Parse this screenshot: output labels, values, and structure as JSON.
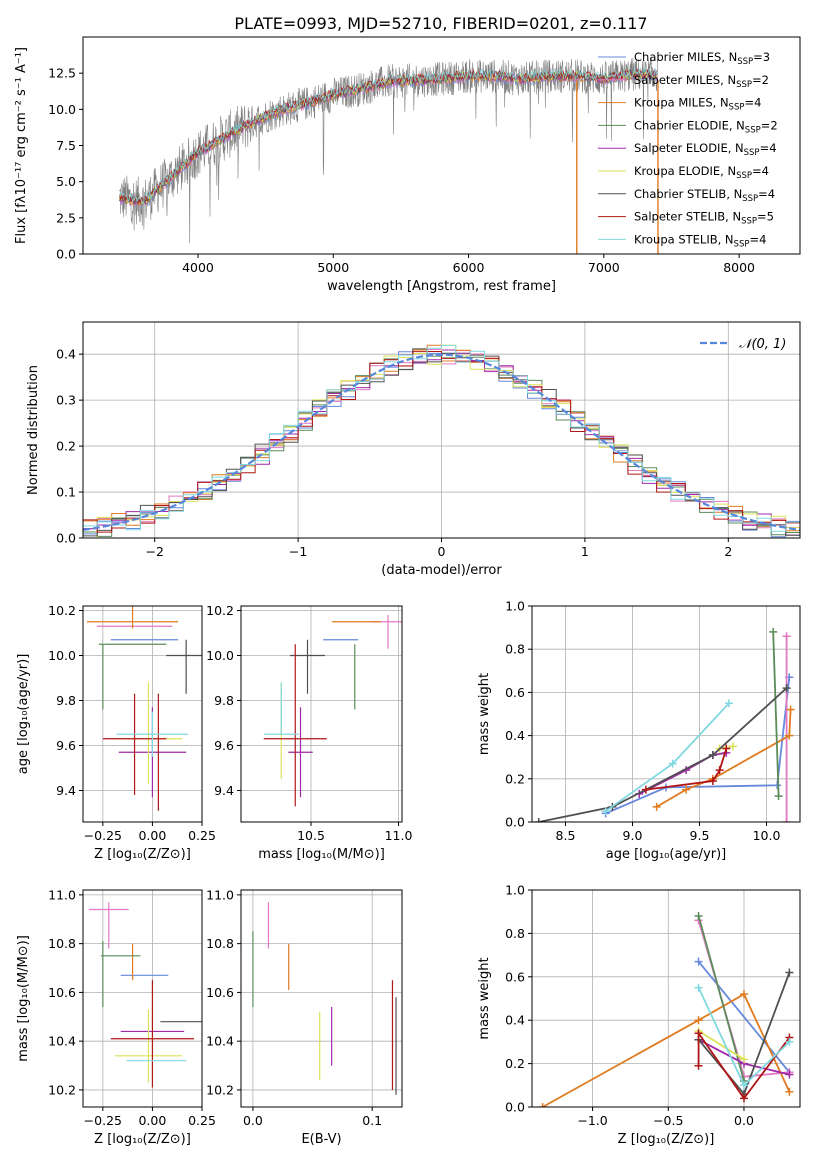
{
  "colors": {
    "Chabrier MILES": "#6688dd",
    "Salpeter MILES": "#e377c2",
    "Kroupa MILES": "#e07b1f",
    "Chabrier ELODIE": "#5b8c5a",
    "Salpeter ELODIE": "#a02aa8",
    "Kroupa ELODIE": "#dbe25a",
    "Chabrier STELIB": "#505050",
    "Salpeter STELIB": "#b01616",
    "Kroupa STELIB": "#80d8e0",
    "data": "#808080",
    "gaussian": "#5588dd",
    "grid": "#b0b0b0"
  },
  "legend": [
    {
      "model": "Chabrier MILES",
      "label": "Chabrier MILES, N",
      "sub": "SSP",
      "suffix": "=3"
    },
    {
      "model": "Salpeter MILES",
      "label": "Salpeter MILES, N",
      "sub": "SSP",
      "suffix": "=2"
    },
    {
      "model": "Kroupa MILES",
      "label": "Kroupa MILES, N",
      "sub": "SSP",
      "suffix": "=4"
    },
    {
      "model": "Chabrier ELODIE",
      "label": "Chabrier ELODIE, N",
      "sub": "SSP",
      "suffix": "=2"
    },
    {
      "model": "Salpeter ELODIE",
      "label": "Salpeter ELODIE, N",
      "sub": "SSP",
      "suffix": "=4"
    },
    {
      "model": "Kroupa ELODIE",
      "label": "Kroupa ELODIE, N",
      "sub": "SSP",
      "suffix": "=4"
    },
    {
      "model": "Chabrier STELIB",
      "label": "Chabrier STELIB, N",
      "sub": "SSP",
      "suffix": "=4"
    },
    {
      "model": "Salpeter STELIB",
      "label": "Salpeter STELIB, N",
      "sub": "SSP",
      "suffix": "=5"
    },
    {
      "model": "Kroupa STELIB",
      "label": "Kroupa STELIB, N",
      "sub": "SSP",
      "suffix": "=4"
    }
  ],
  "chart_data": [
    {
      "type": "line",
      "title": "PLATE=0993, MJD=52710, FIBERID=0201, z=0.117",
      "xlabel": "wavelength [Angstrom, rest frame]",
      "ylabel": "Flux [fλ10⁻¹⁷ erg cm⁻² s⁻¹ A⁻¹]",
      "xlim": [
        3150,
        8450
      ],
      "ylim": [
        0,
        15
      ],
      "xticks": [
        4000,
        5000,
        6000,
        7000,
        8000
      ],
      "yticks": [
        0.0,
        2.5,
        5.0,
        7.5,
        10.0,
        12.5
      ],
      "ytick_labels": [
        "0.0",
        "2.5",
        "5.0",
        "7.5",
        "10.0",
        "12.5"
      ],
      "grid": false,
      "legend_position": "upper right",
      "spectrum_shape": {
        "x": [
          3420,
          3600,
          3800,
          4000,
          4200,
          4400,
          4600,
          4800,
          5000,
          5200,
          5400,
          5600,
          5800,
          6000,
          6200,
          6400,
          6600,
          6800,
          7000,
          7200,
          7400
        ],
        "y": [
          3.9,
          3.6,
          5.3,
          7.0,
          8.1,
          9.1,
          9.9,
          10.4,
          11.0,
          11.4,
          11.9,
          12.0,
          12.1,
          12.3,
          12.3,
          12.1,
          12.3,
          12.3,
          12.1,
          12.4,
          12.4
        ]
      }
    },
    {
      "type": "histogram",
      "xlabel": "(data-model)/error",
      "ylabel": "Normed distribution",
      "xlim": [
        -2.5,
        2.5
      ],
      "ylim": [
        0,
        0.47
      ],
      "xticks": [
        -2,
        -1,
        0,
        1,
        2
      ],
      "xtick_labels": [
        "−2",
        "−1",
        "0",
        "1",
        "2"
      ],
      "yticks": [
        0.0,
        0.1,
        0.2,
        0.3,
        0.4
      ],
      "ytick_labels": [
        "0.0",
        "0.1",
        "0.2",
        "0.3",
        "0.4"
      ],
      "grid": true,
      "gaussian_label": "𝒩(0, 1)",
      "legend_position": "upper right",
      "bins": [
        -2.5,
        2.5,
        50
      ]
    },
    {
      "type": "scatter",
      "xlabel": "Z [log₁₀(Z/Z⊙)]",
      "ylabel": "age  [log₁₀(age/yr)]",
      "xlim": [
        -0.35,
        0.25
      ],
      "ylim": [
        9.26,
        10.22
      ],
      "xticks": [
        -0.25,
        0.0,
        0.25
      ],
      "xtick_labels": [
        "−0.25",
        "0.00",
        "0.25"
      ],
      "yticks": [
        9.4,
        9.6,
        9.8,
        10.0,
        10.2
      ],
      "ytick_labels": [
        "9.4",
        "9.6",
        "9.8",
        "10.0",
        "10.2"
      ],
      "grid": true,
      "points": [
        {
          "model": "Chabrier MILES",
          "x": -0.04,
          "y": 10.07,
          "xerr": 0.17,
          "yerr": [
            0.0,
            0.0
          ]
        },
        {
          "model": "Salpeter MILES",
          "x": -0.09,
          "y": 10.13,
          "xerr": 0.19,
          "yerr": [
            0.0,
            0.0
          ]
        },
        {
          "model": "Kroupa MILES",
          "x": -0.1,
          "y": 10.15,
          "xerr": 0.23,
          "yerr": [
            0.03,
            0.12
          ]
        },
        {
          "model": "Chabrier ELODIE",
          "x": -0.1,
          "y": 10.05,
          "xerr": 0.17,
          "yerr": [
            0.0,
            0.0
          ]
        },
        {
          "model": "Chabrier ELODIE",
          "x": -0.25,
          "y": 10.05,
          "xerr": 0.0,
          "yerr": [
            0.29,
            0.0
          ]
        },
        {
          "model": "Salpeter ELODIE",
          "x": 0.0,
          "y": 9.57,
          "xerr": 0.17,
          "yerr": [
            0.2,
            0.2
          ]
        },
        {
          "model": "Kroupa ELODIE",
          "x": -0.02,
          "y": 9.63,
          "xerr": 0.17,
          "yerr": [
            0.2,
            0.25
          ]
        },
        {
          "model": "Chabrier STELIB",
          "x": 0.17,
          "y": 10.0,
          "xerr": 0.1,
          "yerr": [
            0.17,
            0.07
          ]
        },
        {
          "model": "Salpeter STELIB",
          "x": -0.09,
          "y": 9.63,
          "xerr": 0.16,
          "yerr": [
            0.25,
            0.2
          ]
        },
        {
          "model": "Salpeter STELIB",
          "x": 0.03,
          "y": 9.63,
          "xerr": 0.0,
          "yerr": [
            0.32,
            0.2
          ]
        },
        {
          "model": "Kroupa STELIB",
          "x": 0.0,
          "y": 9.65,
          "xerr": 0.18,
          "yerr": [
            0.1,
            0.1
          ]
        }
      ]
    },
    {
      "type": "scatter",
      "xlabel": "mass [log₁₀(M/M⊙)]",
      "ylabel": "",
      "xlim": [
        10.1,
        11.02
      ],
      "ylim": [
        9.26,
        10.22
      ],
      "xticks": [
        10.5,
        11.0
      ],
      "xtick_labels": [
        "10.5",
        "11.0"
      ],
      "yticks": [
        9.4,
        9.6,
        9.8,
        10.0,
        10.2
      ],
      "ytick_labels": [
        "9.4",
        "9.6",
        "9.8",
        "10.0",
        "10.2"
      ],
      "grid": true,
      "points": [
        {
          "model": "Chabrier MILES",
          "x": 10.67,
          "y": 10.07,
          "xerr": 0.1,
          "yerr": [
            0.0,
            0.0
          ]
        },
        {
          "model": "Salpeter MILES",
          "x": 10.94,
          "y": 10.15,
          "xerr": 0.1,
          "yerr": [
            0.12,
            0.03
          ]
        },
        {
          "model": "Kroupa MILES",
          "x": 10.76,
          "y": 10.15,
          "xerr": 0.14,
          "yerr": [
            0.0,
            0.0
          ]
        },
        {
          "model": "Chabrier ELODIE",
          "x": 10.75,
          "y": 10.05,
          "xerr": 0.0,
          "yerr": [
            0.29,
            0.0
          ]
        },
        {
          "model": "Salpeter ELODIE",
          "x": 10.44,
          "y": 9.57,
          "xerr": 0.07,
          "yerr": [
            0.2,
            0.2
          ]
        },
        {
          "model": "Kroupa ELODIE",
          "x": 10.33,
          "y": 9.65,
          "xerr": 0.0,
          "yerr": [
            0.2,
            0.23
          ]
        },
        {
          "model": "Chabrier STELIB",
          "x": 10.48,
          "y": 10.0,
          "xerr": 0.1,
          "yerr": [
            0.17,
            0.07
          ]
        },
        {
          "model": "Salpeter STELIB",
          "x": 10.41,
          "y": 9.63,
          "xerr": 0.18,
          "yerr": [
            0.3,
            0.42
          ]
        },
        {
          "model": "Kroupa STELIB",
          "x": 10.33,
          "y": 9.65,
          "xerr": 0.1,
          "yerr": [
            0.0,
            0.23
          ]
        }
      ]
    },
    {
      "type": "line",
      "xlabel": "age  [log₁₀(age/yr)]",
      "ylabel": "mass weight",
      "xlim": [
        8.25,
        10.25
      ],
      "ylim": [
        0,
        1
      ],
      "xticks": [
        8.5,
        9.0,
        9.5,
        10.0
      ],
      "xtick_labels": [
        "8.5",
        "9.0",
        "9.5",
        "10.0"
      ],
      "yticks": [
        0.0,
        0.2,
        0.4,
        0.6,
        0.8,
        1.0
      ],
      "ytick_labels": [
        "0.0",
        "0.2",
        "0.4",
        "0.6",
        "0.8",
        "1.0"
      ],
      "grid": true,
      "series": [
        {
          "model": "Chabrier MILES",
          "x": [
            8.8,
            9.25,
            10.08,
            10.17
          ],
          "y": [
            0.04,
            0.16,
            0.17,
            0.67
          ]
        },
        {
          "model": "Salpeter MILES",
          "x": [
            10.15,
            10.15
          ],
          "y": [
            0.86,
            0.0
          ]
        },
        {
          "model": "Kroupa MILES",
          "x": [
            9.18,
            9.4,
            9.6,
            10.17,
            10.18
          ],
          "y": [
            0.07,
            0.15,
            0.2,
            0.4,
            0.52
          ]
        },
        {
          "model": "Chabrier ELODIE",
          "x": [
            10.05,
            10.09
          ],
          "y": [
            0.88,
            0.12
          ]
        },
        {
          "model": "Salpeter ELODIE",
          "x": [
            9.05,
            9.4,
            9.6,
            9.7
          ],
          "y": [
            0.13,
            0.24,
            0.31,
            0.32
          ]
        },
        {
          "model": "Kroupa ELODIE",
          "x": [
            9.65,
            9.75
          ],
          "y": [
            0.34,
            0.35
          ]
        },
        {
          "model": "Chabrier STELIB",
          "x": [
            8.3,
            8.85,
            9.6,
            10.15
          ],
          "y": [
            0.0,
            0.07,
            0.31,
            0.62
          ]
        },
        {
          "model": "Salpeter STELIB",
          "x": [
            9.1,
            9.6,
            9.65,
            9.7
          ],
          "y": [
            0.15,
            0.19,
            0.24,
            0.34
          ]
        },
        {
          "model": "Kroupa STELIB",
          "x": [
            8.8,
            9.3,
            9.72
          ],
          "y": [
            0.05,
            0.27,
            0.55
          ]
        }
      ]
    },
    {
      "type": "scatter",
      "xlabel": "Z [log₁₀(Z/Z⊙)]",
      "ylabel": "mass [log₁₀(M/M⊙)]",
      "xlim": [
        -0.35,
        0.25
      ],
      "ylim": [
        10.13,
        11.02
      ],
      "xticks": [
        -0.25,
        0.0,
        0.25
      ],
      "xtick_labels": [
        "−0.25",
        "0.00",
        "0.25"
      ],
      "yticks": [
        10.2,
        10.4,
        10.6,
        10.8,
        11.0
      ],
      "ytick_labels": [
        "10.2",
        "10.4",
        "10.6",
        "10.8",
        "11.0"
      ],
      "grid": true,
      "points": [
        {
          "model": "Chabrier MILES",
          "x": -0.04,
          "y": 10.67,
          "xerr": 0.12,
          "yerr": [
            0.0,
            0.0
          ]
        },
        {
          "model": "Salpeter MILES",
          "x": -0.22,
          "y": 10.94,
          "xerr": 0.1,
          "yerr": [
            0.16,
            0.03
          ]
        },
        {
          "model": "Kroupa MILES",
          "x": -0.1,
          "y": 10.75,
          "xerr": 0.0,
          "yerr": [
            0.1,
            0.05
          ]
        },
        {
          "model": "Chabrier ELODIE",
          "x": -0.16,
          "y": 10.75,
          "xerr": 0.1,
          "yerr": [
            0.0,
            0.0
          ]
        },
        {
          "model": "Chabrier ELODIE",
          "x": -0.25,
          "y": 10.75,
          "xerr": 0.0,
          "yerr": [
            0.21,
            0.06
          ]
        },
        {
          "model": "Salpeter ELODIE",
          "x": 0.0,
          "y": 10.44,
          "xerr": 0.16,
          "yerr": [
            0.0,
            0.0
          ]
        },
        {
          "model": "Kroupa ELODIE",
          "x": -0.02,
          "y": 10.34,
          "xerr": 0.17,
          "yerr": [
            0.11,
            0.19
          ]
        },
        {
          "model": "Chabrier STELIB",
          "x": 0.17,
          "y": 10.48,
          "xerr": 0.13,
          "yerr": [
            0.0,
            0.0
          ]
        },
        {
          "model": "Salpeter STELIB",
          "x": 0.0,
          "y": 10.41,
          "xerr": 0.21,
          "yerr": [
            0.2,
            0.24
          ]
        },
        {
          "model": "Kroupa STELIB",
          "x": 0.02,
          "y": 10.32,
          "xerr": 0.15,
          "yerr": [
            0.0,
            0.0
          ]
        }
      ]
    },
    {
      "type": "scatter",
      "xlabel": "E(B-V)",
      "ylabel": "",
      "xlim": [
        -0.01,
        0.125
      ],
      "ylim": [
        10.13,
        11.02
      ],
      "xticks": [
        0.0,
        0.1
      ],
      "xtick_labels": [
        "0.0",
        "0.1"
      ],
      "yticks": [
        10.2,
        10.4,
        10.6,
        10.8,
        11.0
      ],
      "ytick_labels": [
        "10.2",
        "10.4",
        "10.6",
        "10.8",
        "11.0"
      ],
      "grid": true,
      "points": [
        {
          "model": "Salpeter MILES",
          "x": 0.013,
          "y": 10.94,
          "xerr": 0.0,
          "yerr": [
            0.16,
            0.03
          ]
        },
        {
          "model": "Kroupa MILES",
          "x": 0.03,
          "y": 10.71,
          "xerr": 0.0,
          "yerr": [
            0.1,
            0.09
          ]
        },
        {
          "model": "Chabrier ELODIE",
          "x": 0.0,
          "y": 10.75,
          "xerr": 0.0,
          "yerr": [
            0.21,
            0.1
          ]
        },
        {
          "model": "Salpeter ELODIE",
          "x": 0.066,
          "y": 10.42,
          "xerr": 0.0,
          "yerr": [
            0.12,
            0.12
          ]
        },
        {
          "model": "Kroupa ELODIE",
          "x": 0.056,
          "y": 10.38,
          "xerr": 0.0,
          "yerr": [
            0.14,
            0.14
          ]
        },
        {
          "model": "Salpeter STELIB",
          "x": 0.117,
          "y": 10.42,
          "xerr": 0.0,
          "yerr": [
            0.22,
            0.23
          ]
        },
        {
          "model": "Chabrier STELIB",
          "x": 0.12,
          "y": 10.4,
          "xerr": 0.0,
          "yerr": [
            0.22,
            0.18
          ]
        }
      ]
    },
    {
      "type": "line",
      "xlabel": "Z [log₁₀(Z/Z⊙)]",
      "ylabel": "mass weight",
      "xlim": [
        -1.4,
        0.37
      ],
      "ylim": [
        0,
        1
      ],
      "xticks": [
        -1.0,
        -0.5,
        0.0
      ],
      "xtick_labels": [
        "−1.0",
        "−0.5",
        "0.0"
      ],
      "yticks": [
        0.0,
        0.2,
        0.4,
        0.6,
        0.8,
        1.0
      ],
      "ytick_labels": [
        "0.0",
        "0.2",
        "0.4",
        "0.6",
        "0.8",
        "1.0"
      ],
      "grid": true,
      "series": [
        {
          "model": "Chabrier MILES",
          "x": [
            -0.3,
            0.3
          ],
          "y": [
            0.67,
            0.16
          ]
        },
        {
          "model": "Salpeter MILES",
          "x": [
            -0.3,
            0.0,
            0.3
          ],
          "y": [
            0.86,
            0.14,
            0.16
          ]
        },
        {
          "model": "Kroupa MILES",
          "x": [
            -1.33,
            -0.3,
            0.0,
            0.3
          ],
          "y": [
            0.0,
            0.4,
            0.52,
            0.07
          ]
        },
        {
          "model": "Chabrier ELODIE",
          "x": [
            -0.3,
            0.0
          ],
          "y": [
            0.88,
            0.12
          ]
        },
        {
          "model": "Salpeter ELODIE",
          "x": [
            -0.3,
            0.0,
            0.3
          ],
          "y": [
            0.31,
            0.2,
            0.15
          ]
        },
        {
          "model": "Kroupa ELODIE",
          "x": [
            -0.3,
            0.0
          ],
          "y": [
            0.35,
            0.22
          ]
        },
        {
          "model": "Chabrier STELIB",
          "x": [
            -0.3,
            0.0,
            0.3
          ],
          "y": [
            0.31,
            0.06,
            0.62
          ]
        },
        {
          "model": "Salpeter STELIB",
          "x": [
            -0.3,
            -0.3,
            0.0,
            0.3
          ],
          "y": [
            0.19,
            0.34,
            0.04,
            0.32
          ]
        },
        {
          "model": "Kroupa STELIB",
          "x": [
            -0.3,
            0.0,
            0.3
          ],
          "y": [
            0.55,
            0.1,
            0.3
          ]
        }
      ]
    }
  ]
}
